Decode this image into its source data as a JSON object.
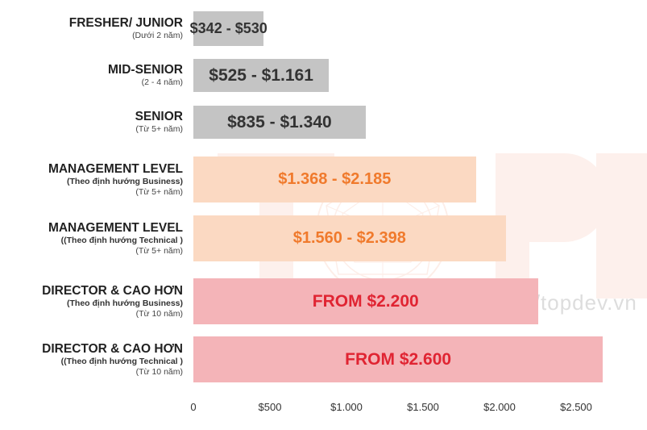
{
  "chart_data": {
    "type": "bar",
    "orientation": "horizontal",
    "title": "",
    "xlabel": "",
    "ylabel": "",
    "xlim": [
      0,
      2500
    ],
    "x_ticks": [
      0,
      500,
      1000,
      1500,
      2000,
      2500
    ],
    "x_tick_labels": [
      "0",
      "$500",
      "$1.000",
      "$1.500",
      "$2.000",
      "$2.500"
    ],
    "grid": false,
    "categories": [
      {
        "main": "FRESHER/ JUNIOR",
        "sub1": "",
        "sub2": "(Dưới 2 năm)"
      },
      {
        "main": "MID-SENIOR",
        "sub1": "",
        "sub2": "(2 - 4 năm)"
      },
      {
        "main": "SENIOR",
        "sub1": "",
        "sub2": "(Từ 5+ năm)"
      },
      {
        "main": "MANAGEMENT LEVEL",
        "sub1": "(Theo định hướng Business)",
        "sub2": "(Từ 5+ năm)"
      },
      {
        "main": "MANAGEMENT LEVEL",
        "sub1": "((Theo định hướng Technical )",
        "sub2": "(Từ 5+ năm)"
      },
      {
        "main": "DIRECTOR & CAO HƠN",
        "sub1": "(Theo định hướng Business)",
        "sub2": "(Từ 10 năm)"
      },
      {
        "main": "DIRECTOR & CAO HƠN",
        "sub1": "((Theo định hướng Technical )",
        "sub2": "(Từ 10 năm)"
      }
    ],
    "values": [
      460,
      885,
      1125,
      1845,
      2040,
      2250,
      2675
    ],
    "data_labels": [
      "$342 - $530",
      "$525 - $1.161",
      "$835 - $1.340",
      "$1.368 - $2.185",
      "$1.560 - $2.398",
      "FROM $2.200",
      "FROM $2.600"
    ],
    "bar_colors": [
      "#c4c4c4",
      "#c4c4c4",
      "#c4c4c4",
      "#fbd9c2",
      "#fbd9c2",
      "#f4b4b8",
      "#f4b4b8"
    ],
    "label_colors": [
      "#333333",
      "#333333",
      "#333333",
      "#f07a2c",
      "#f07a2c",
      "#e02432",
      "#e02432"
    ],
    "label_sizes": [
      18,
      21,
      21,
      20,
      20,
      21,
      21
    ]
  },
  "watermark": {
    "logo_text": "TOPDEV",
    "logo_text_visible": "TOP",
    "url": "https://topdev.vn"
  }
}
